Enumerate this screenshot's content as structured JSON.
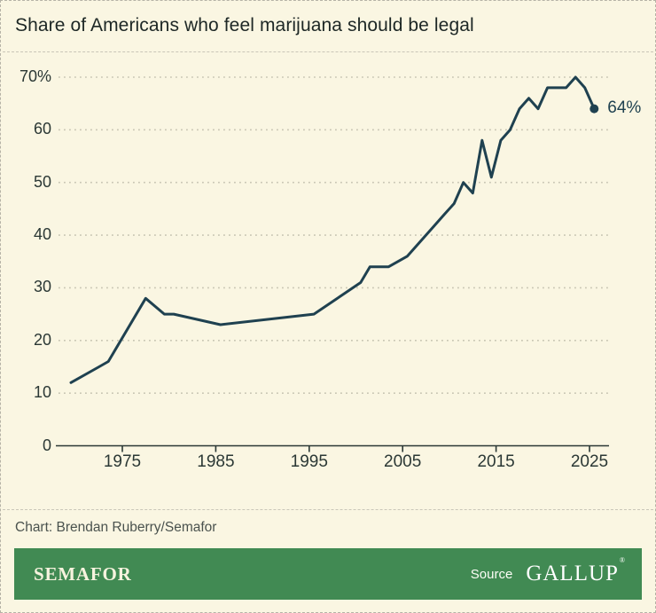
{
  "title": "Share of Americans who feel marijuana should be legal",
  "credit": "Chart: Brendan Ruberry/Semafor",
  "footer": {
    "brand": "SEMAFOR",
    "source_label": "Source",
    "source_name": "GALLUP",
    "registered_mark": "®"
  },
  "colors": {
    "background": "#faf6e2",
    "card_border": "#b5b2a6",
    "title_text": "#1d2725",
    "credit_text": "#4a524e",
    "gridline": "#c8c5b3",
    "separator": "#c9c6b8",
    "axis": "#2b3835",
    "line": "#1f4150",
    "footer_bar_green": "#418a53",
    "brand_text": "#f7f3de"
  },
  "chart_data": {
    "type": "line",
    "title": "Share of Americans who feel marijuana should be legal",
    "x": [
      1969,
      1972,
      1973,
      1977,
      1979,
      1980,
      1985,
      1995,
      2000,
      2001,
      2003,
      2005,
      2009,
      2010,
      2011,
      2012,
      2013,
      2014,
      2015,
      2016,
      2017,
      2018,
      2019,
      2020,
      2021,
      2022,
      2023,
      2024,
      2025
    ],
    "values": [
      12,
      15,
      16,
      28,
      25,
      25,
      23,
      25,
      31,
      34,
      34,
      36,
      44,
      46,
      50,
      48,
      58,
      51,
      58,
      60,
      64,
      66,
      64,
      68,
      68,
      68,
      70,
      68,
      64
    ],
    "end_label": "64%",
    "xlabel": "",
    "ylabel": "",
    "ylim": [
      0,
      70
    ],
    "xlim": [
      1968,
      2027
    ],
    "grid": "horizontal-dotted",
    "legend": "none",
    "yticks": [
      {
        "value": 0,
        "label": "0"
      },
      {
        "value": 10,
        "label": "10"
      },
      {
        "value": 20,
        "label": "20"
      },
      {
        "value": 30,
        "label": "30"
      },
      {
        "value": 40,
        "label": "40"
      },
      {
        "value": 50,
        "label": "50"
      },
      {
        "value": 60,
        "label": "60"
      },
      {
        "value": 70,
        "label": "70%"
      }
    ],
    "xticks": [
      {
        "value": 1975,
        "label": "1975"
      },
      {
        "value": 1985,
        "label": "1985"
      },
      {
        "value": 1995,
        "label": "1995"
      },
      {
        "value": 2005,
        "label": "2005"
      },
      {
        "value": 2015,
        "label": "2015"
      },
      {
        "value": 2025,
        "label": "2025"
      }
    ]
  }
}
